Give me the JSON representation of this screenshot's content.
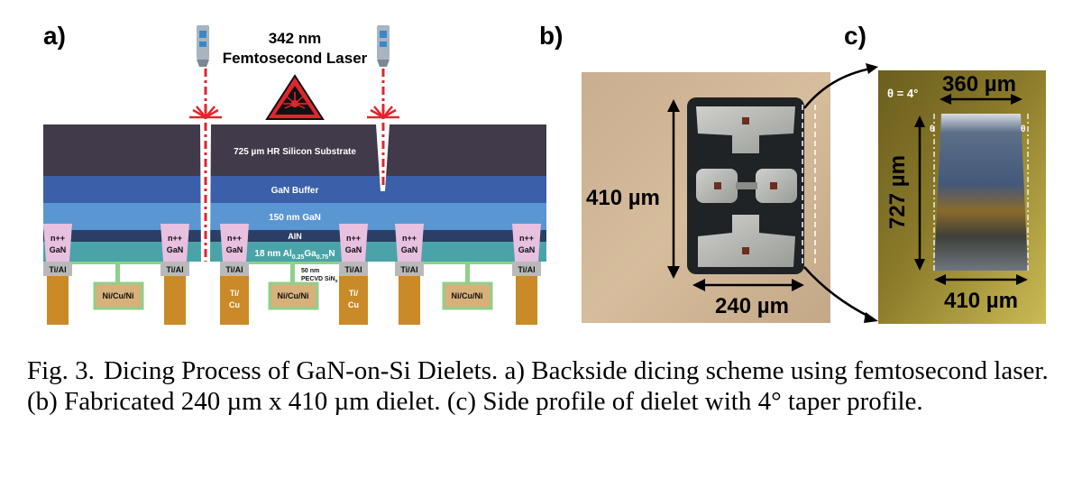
{
  "figure": {
    "panel_labels": {
      "a": "a)",
      "b": "b)",
      "c": "c)"
    },
    "caption": {
      "number": "Fig. 3.",
      "text": "Dicing Process of GaN-on-Si Dielets. a) Backside dicing scheme using femtosecond laser. (b) Fabricated 240 µm x 410 µm dielet. (c) Side profile of dielet with 4° taper profile."
    }
  },
  "panel_a": {
    "laser_line1": "342 nm",
    "laser_line2": "Femtosecond Laser",
    "warning_icon": "laser-warning-icon",
    "layers": {
      "substrate": "725 µm HR Silicon Substrate",
      "buffer": "GaN Buffer",
      "gan": "150 nm GaN",
      "aln": "AlN",
      "algan_prefix": "18 nm Al",
      "algan_sub1": "0.25",
      "algan_mid": "Ga",
      "algan_sub2": "0.75",
      "algan_suffix": "N"
    },
    "contact_n_line1": "n++",
    "contact_n_line2": "GaN",
    "tial": "Ti/Al",
    "nicuni": "Ni/Cu/Ni",
    "ticu_line1": "Ti/",
    "ticu_line2": "Cu",
    "pecvd_line1": "50 nm",
    "pecvd_line2": "PECVD SiN",
    "pecvd_sub": "x",
    "colors": {
      "substrate": "#413a4a",
      "buffer": "#3b5fa8",
      "gan": "#5a96d2",
      "aln": "#2a3f63",
      "algan": "#4aa3a8",
      "ngan": "#e8c0e0",
      "tial": "#b9b9b9",
      "copper": "#c98a27",
      "nicuni_fill": "#d7b07a",
      "nicuni_border": "#8fd08a",
      "laser": "#e0262d"
    }
  },
  "panel_b": {
    "height_label": "410 µm",
    "width_label": "240 µm"
  },
  "panel_c": {
    "angle_label": "θ = 4°",
    "theta_left": "θ",
    "theta_right": "θ",
    "top_width": "360 µm",
    "bottom_width": "410 µm",
    "height_label": "727 µm"
  }
}
